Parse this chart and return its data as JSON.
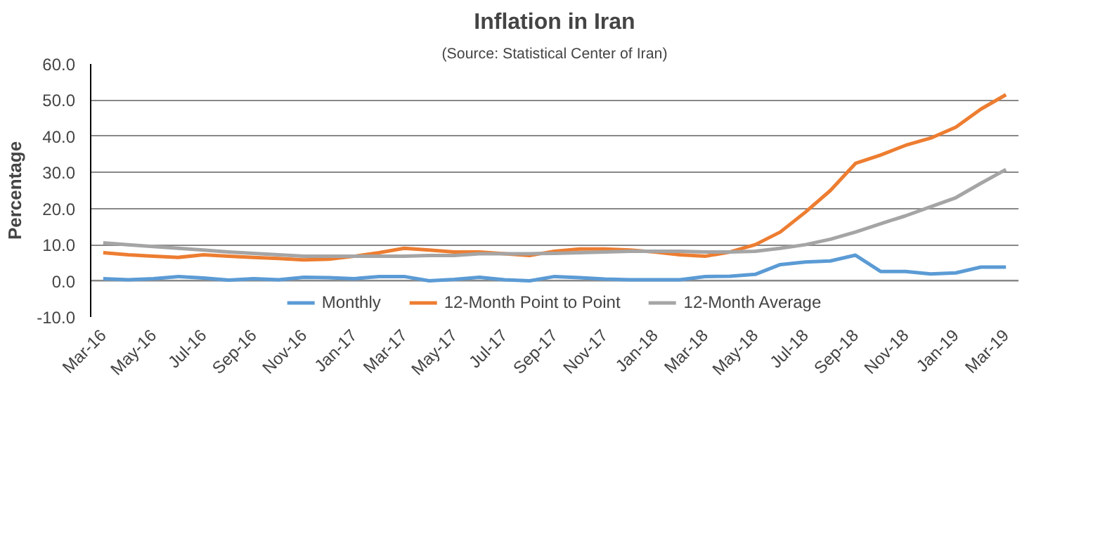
{
  "chart_data": {
    "type": "line",
    "title": "Inflation in Iran",
    "subtitle": "(Source: Statistical Center of Iran)",
    "ylabel": "Percentage",
    "categories": [
      "Mar-16",
      null,
      "May-16",
      null,
      "Jul-16",
      null,
      "Sep-16",
      null,
      "Nov-16",
      null,
      "Jan-17",
      null,
      "Mar-17",
      null,
      "May-17",
      null,
      "Jul-17",
      null,
      "Sep-17",
      null,
      "Nov-17",
      null,
      "Jan-18",
      null,
      "Mar-18",
      null,
      "May-18",
      null,
      "Jul-18",
      null,
      "Sep-18",
      null,
      "Nov-18",
      null,
      "Jan-19",
      null,
      "Mar-19"
    ],
    "series": [
      {
        "name": "Monthly",
        "color": "#5b9bd5",
        "values": [
          0.6,
          0.3,
          0.6,
          1.2,
          0.8,
          0.2,
          0.6,
          0.3,
          1.0,
          0.9,
          0.6,
          1.2,
          1.2,
          0.0,
          0.4,
          1.0,
          0.3,
          0.0,
          1.2,
          0.9,
          0.5,
          0.3,
          0.3,
          0.3,
          1.2,
          1.3,
          1.8,
          4.5,
          5.2,
          5.5,
          7.1,
          2.6,
          2.6,
          1.9,
          2.2,
          3.8,
          3.8
        ]
      },
      {
        "name": "12-Month Point to Point",
        "color": "#ed7d31",
        "values": [
          7.8,
          7.2,
          6.8,
          6.5,
          7.2,
          6.8,
          6.5,
          6.2,
          5.8,
          6.0,
          6.8,
          7.8,
          9.0,
          8.5,
          8.0,
          8.0,
          7.5,
          7.0,
          8.2,
          8.8,
          8.8,
          8.5,
          8.0,
          7.2,
          6.8,
          8.0,
          10.0,
          13.5,
          19.0,
          25.0,
          32.5,
          34.8,
          37.5,
          39.5,
          42.5,
          47.5,
          51.5
        ]
      },
      {
        "name": "12-Month Average",
        "color": "#a5a5a5",
        "values": [
          10.5,
          10.0,
          9.5,
          9.0,
          8.5,
          8.0,
          7.6,
          7.2,
          6.8,
          6.8,
          6.8,
          6.8,
          6.8,
          7.0,
          7.0,
          7.5,
          7.5,
          7.5,
          7.6,
          7.8,
          8.0,
          8.2,
          8.2,
          8.2,
          8.0,
          8.0,
          8.2,
          9.0,
          10.0,
          11.5,
          13.5,
          15.8,
          18.0,
          20.5,
          23.0,
          27.0,
          30.8
        ]
      }
    ],
    "ylim": [
      -10,
      60
    ],
    "yticks": [
      {
        "value": -10,
        "label": "-10.0"
      },
      {
        "value": 0,
        "label": "0.0"
      },
      {
        "value": 10,
        "label": "10.0"
      },
      {
        "value": 20,
        "label": "20.0"
      },
      {
        "value": 30,
        "label": "30.0"
      },
      {
        "value": 40,
        "label": "40.0"
      },
      {
        "value": 50,
        "label": "50.0"
      },
      {
        "value": 60,
        "label": "60.0"
      }
    ],
    "grid": "y",
    "legend": "bottom",
    "marker": "none",
    "line_style": "solid"
  }
}
